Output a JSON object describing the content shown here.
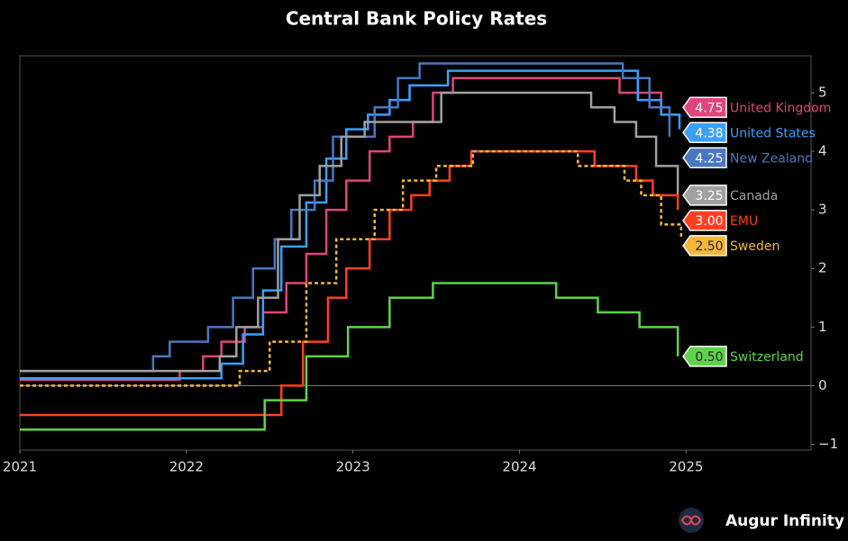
{
  "chart_data": {
    "type": "step",
    "title": "Central Bank Policy Rates",
    "xlim": [
      2021,
      2025.75
    ],
    "xticks": [
      2021,
      2022,
      2023,
      2024,
      2025
    ],
    "ylim": [
      -1.1,
      5.63
    ],
    "yticks": [
      {
        "value": -1,
        "label": "−1"
      },
      0,
      1,
      2,
      3,
      4,
      5
    ],
    "zero_line": true,
    "series": [
      {
        "name": "United Kingdom",
        "color": "#e0457b",
        "label_text": "#ffffff",
        "last_label": "4.75",
        "x": [
          2021,
          2021.96,
          2022.1,
          2022.21,
          2022.35,
          2022.46,
          2022.6,
          2022.72,
          2022.84,
          2022.96,
          2023.1,
          2023.22,
          2023.36,
          2023.48,
          2023.6,
          2024.6,
          2024.85
        ],
        "values": [
          0.1,
          0.25,
          0.5,
          0.75,
          1.0,
          1.25,
          1.75,
          2.25,
          3.0,
          3.5,
          4.0,
          4.25,
          4.5,
          5.0,
          5.25,
          5.0,
          4.75
        ]
      },
      {
        "name": "United States",
        "color": "#3aa0ff",
        "label_text": "#ffffff",
        "last_label": "4.38",
        "x": [
          2021,
          2022.21,
          2022.34,
          2022.46,
          2022.57,
          2022.72,
          2022.84,
          2022.96,
          2023.09,
          2023.22,
          2023.34,
          2023.57,
          2024.71,
          2024.85,
          2024.96
        ],
        "values": [
          0.125,
          0.375,
          0.875,
          1.625,
          2.375,
          3.125,
          3.875,
          4.375,
          4.625,
          4.875,
          5.125,
          5.375,
          4.875,
          4.625,
          4.375
        ]
      },
      {
        "name": "New Zealand",
        "color": "#4a78c0",
        "label_text": "#ffffff",
        "last_label": "4.25",
        "x": [
          2021,
          2021.8,
          2021.9,
          2022.13,
          2022.28,
          2022.4,
          2022.53,
          2022.63,
          2022.77,
          2022.88,
          2023.13,
          2023.27,
          2023.4,
          2024.62,
          2024.78,
          2024.9
        ],
        "values": [
          0.25,
          0.5,
          0.75,
          1.0,
          1.5,
          2.0,
          2.5,
          3.0,
          3.5,
          4.25,
          4.75,
          5.25,
          5.5,
          5.25,
          4.75,
          4.25
        ]
      },
      {
        "name": "Canada",
        "color": "#a0a0a0",
        "label_text": "#ffffff",
        "last_label": "3.25",
        "x": [
          2021,
          2022.2,
          2022.3,
          2022.43,
          2022.55,
          2022.68,
          2022.8,
          2022.93,
          2023.07,
          2023.53,
          2024.43,
          2024.57,
          2024.7,
          2024.82,
          2024.95
        ],
        "values": [
          0.25,
          0.5,
          1.0,
          1.5,
          2.5,
          3.25,
          3.75,
          4.25,
          4.5,
          5.0,
          4.75,
          4.5,
          4.25,
          3.75,
          3.25
        ]
      },
      {
        "name": "EMU",
        "color": "#ff4020",
        "label_text": "#ffffff",
        "last_label": "3.00",
        "x": [
          2021,
          2022.57,
          2022.7,
          2022.85,
          2022.96,
          2023.1,
          2023.22,
          2023.35,
          2023.46,
          2023.58,
          2023.71,
          2024.45,
          2024.7,
          2024.8,
          2024.95
        ],
        "values": [
          -0.5,
          0.0,
          0.75,
          1.5,
          2.0,
          2.5,
          3.0,
          3.25,
          3.5,
          3.75,
          4.0,
          3.75,
          3.5,
          3.25,
          3.0
        ]
      },
      {
        "name": "Sweden",
        "color": "#f5b73a",
        "label_text": "#222222",
        "dashed": true,
        "last_label": "2.50",
        "x": [
          2021,
          2022.32,
          2022.5,
          2022.72,
          2022.9,
          2023.13,
          2023.3,
          2023.5,
          2023.72,
          2024.35,
          2024.63,
          2024.73,
          2024.85,
          2024.97
        ],
        "values": [
          0.0,
          0.25,
          0.75,
          1.75,
          2.5,
          3.0,
          3.5,
          3.75,
          4.0,
          3.75,
          3.5,
          3.25,
          2.75,
          2.5
        ]
      },
      {
        "name": "Switzerland",
        "color": "#5ed34a",
        "label_text": "#222222",
        "last_label": "0.50",
        "x": [
          2021,
          2022.47,
          2022.72,
          2022.97,
          2023.22,
          2023.48,
          2024.22,
          2024.47,
          2024.72,
          2024.95
        ],
        "values": [
          -0.75,
          -0.25,
          0.5,
          1.0,
          1.5,
          1.75,
          1.5,
          1.25,
          1.0,
          0.5
        ]
      }
    ],
    "logo": "Augur Infinity"
  }
}
